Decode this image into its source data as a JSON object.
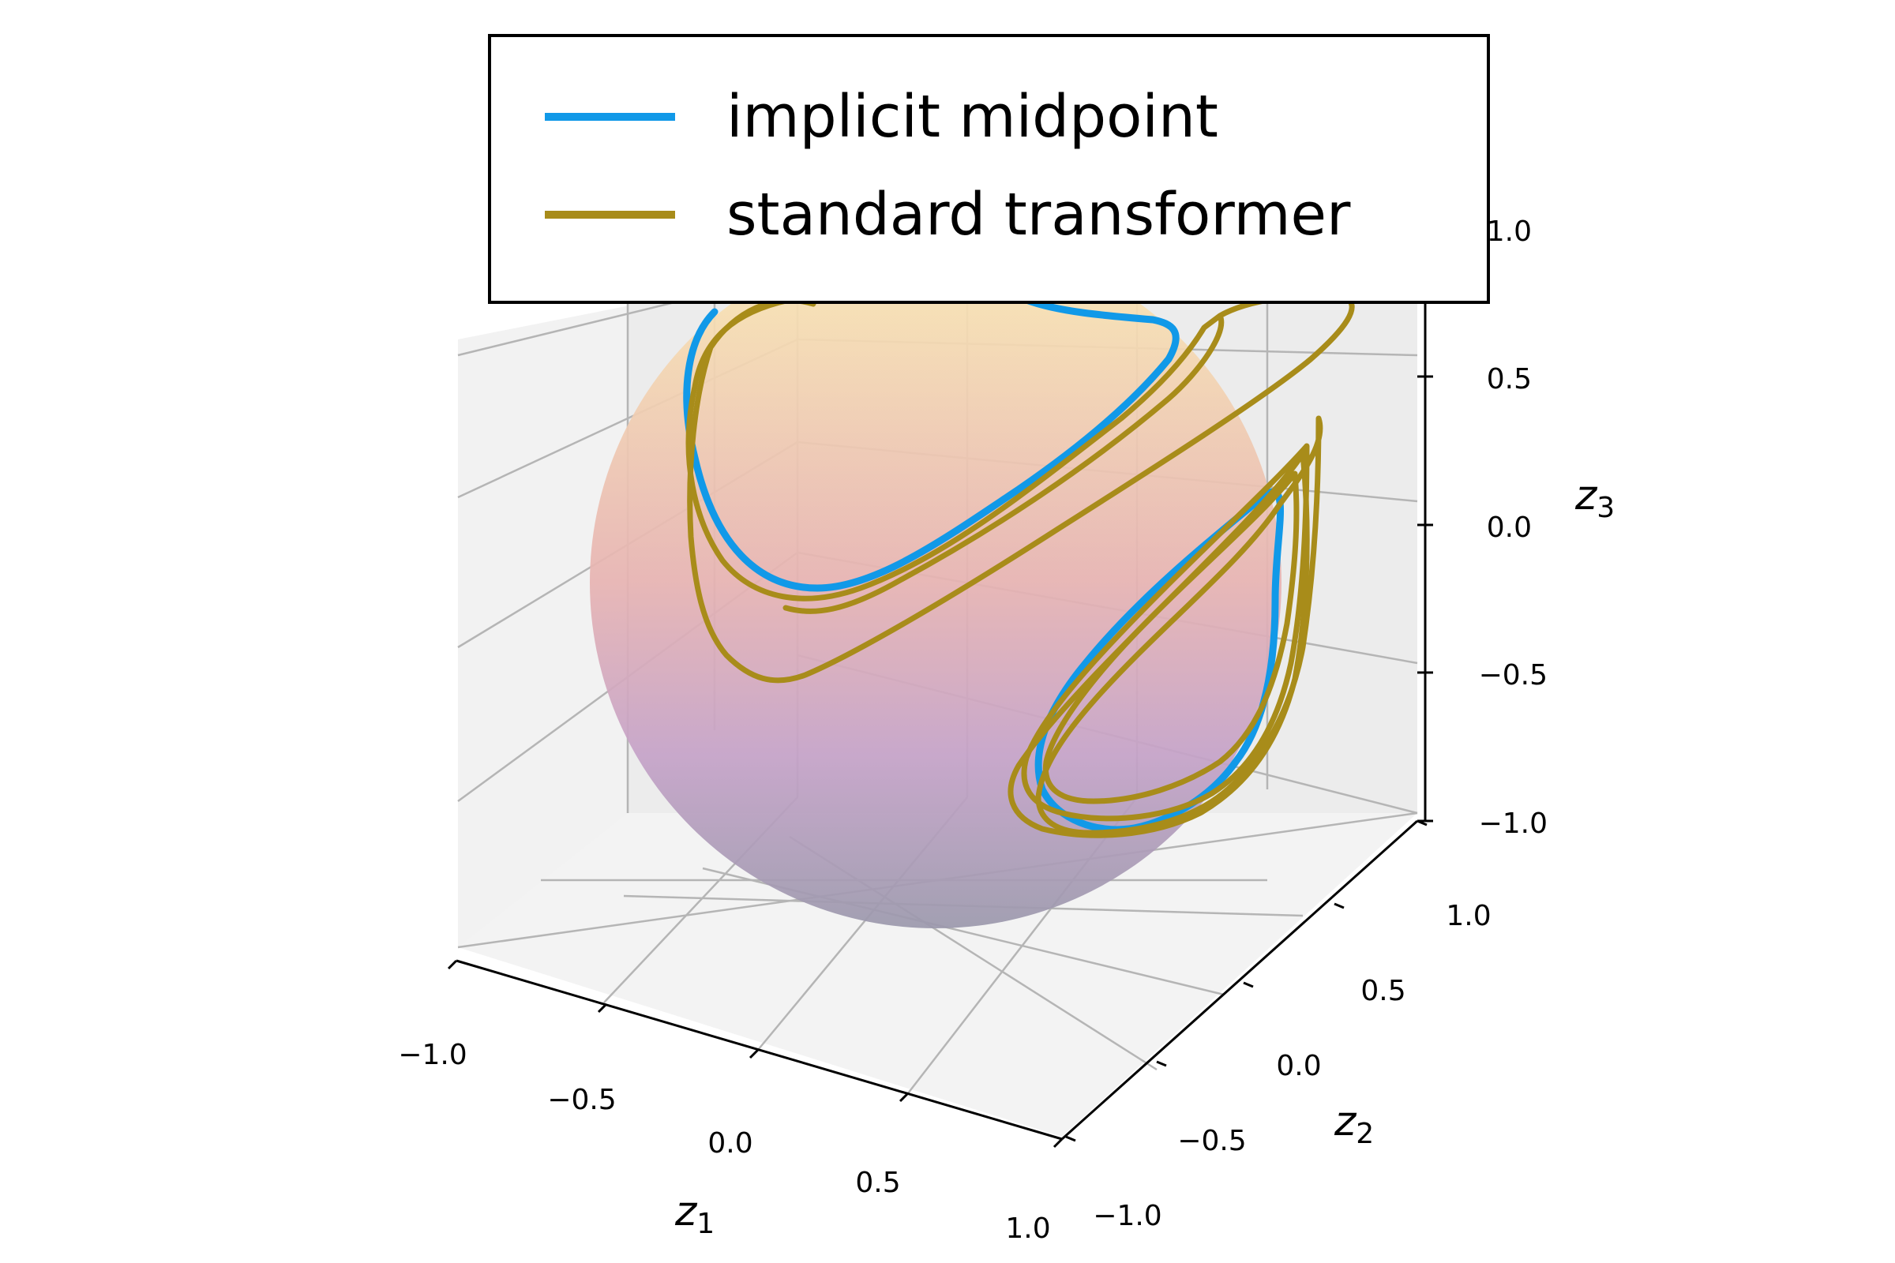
{
  "chart_data": {
    "type": "line",
    "projection": "3d",
    "surface": "unit sphere (gradient from light yellow at top to slate purple at bottom)",
    "axes": {
      "x": {
        "label": "z",
        "label_sub": "1",
        "ticks": [
          "−1.0",
          "−0.5",
          "0.0",
          "0.5",
          "1.0"
        ],
        "range": [
          -1,
          1
        ]
      },
      "y": {
        "label": "z",
        "label_sub": "2",
        "ticks": [
          "−1.0",
          "−0.5",
          "0.0",
          "0.5",
          "1.0"
        ],
        "range": [
          -1,
          1
        ]
      },
      "z": {
        "label": "z",
        "label_sub": "3",
        "ticks": [
          "−1.0",
          "−0.5",
          "0.0",
          "0.5",
          "1.0"
        ],
        "range": [
          -1,
          1
        ]
      }
    },
    "grid": true,
    "legend": {
      "placement": "top-center"
    },
    "series": [
      {
        "name": "implicit midpoint",
        "color": "#1199e8"
      },
      {
        "name": "standard transformer",
        "color": "#a88c1a"
      }
    ]
  }
}
